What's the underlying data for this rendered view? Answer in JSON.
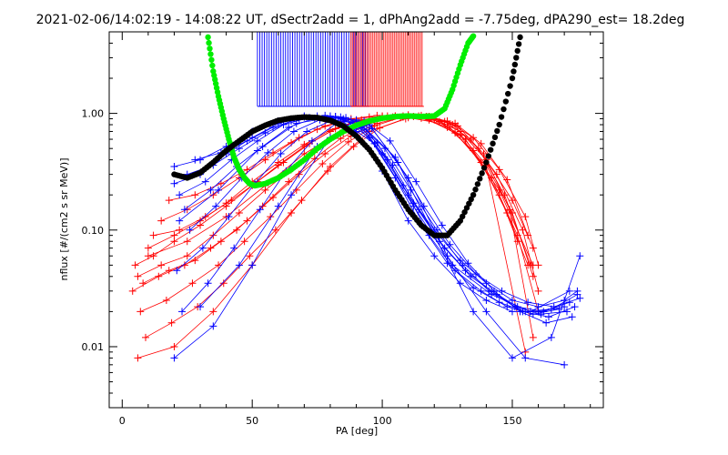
{
  "chart_data": {
    "type": "scatter",
    "title": "2021-02-06/14:02:19 - 14:08:22 UT, dSectr2add = 1, dPhAng2add = -7.75deg, dPA290_est=  18.2deg",
    "xlabel": "PA [deg]",
    "ylabel": "nflux [#/(cm2 s sr MeV)]",
    "xlim": [
      -5,
      185
    ],
    "ylim": [
      0.003,
      5
    ],
    "y_scale": "log",
    "grid": false,
    "x_ticks": [
      {
        "value": 0,
        "label": "0"
      },
      {
        "value": 50,
        "label": "50"
      },
      {
        "value": 100,
        "label": "100"
      },
      {
        "value": 150,
        "label": "150"
      }
    ],
    "y_ticks": [
      {
        "value": 0.01,
        "label": "0.01"
      },
      {
        "value": 0.1,
        "label": "0.10"
      },
      {
        "value": 1,
        "label": "1.00"
      }
    ],
    "colors": {
      "red_series": "#ff0000",
      "blue_series": "#0000ff",
      "green_curve": "#00ee00",
      "black_curve": "#000000",
      "axes": "#000000"
    },
    "curves": {
      "green": {
        "x": [
          33,
          35,
          37,
          39,
          41,
          43,
          45,
          47,
          49,
          51,
          55,
          60,
          65,
          70,
          75,
          80,
          85,
          90,
          95,
          100,
          105,
          110,
          115,
          120,
          124,
          127,
          130,
          133,
          135
        ],
        "y": [
          4.5,
          2.3,
          1.4,
          0.9,
          0.6,
          0.42,
          0.33,
          0.28,
          0.25,
          0.24,
          0.25,
          0.28,
          0.33,
          0.4,
          0.5,
          0.6,
          0.7,
          0.79,
          0.86,
          0.91,
          0.94,
          0.95,
          0.94,
          0.95,
          1.1,
          1.6,
          2.6,
          4.0,
          4.6
        ]
      },
      "black": {
        "x": [
          20,
          25,
          30,
          35,
          40,
          45,
          50,
          55,
          60,
          65,
          70,
          75,
          80,
          85,
          90,
          95,
          100,
          105,
          110,
          115,
          120,
          125,
          130,
          135,
          140,
          145,
          150,
          153
        ],
        "y": [
          0.3,
          0.28,
          0.31,
          0.38,
          0.48,
          0.58,
          0.7,
          0.79,
          0.87,
          0.91,
          0.93,
          0.92,
          0.87,
          0.78,
          0.64,
          0.49,
          0.34,
          0.22,
          0.15,
          0.11,
          0.09,
          0.09,
          0.12,
          0.2,
          0.38,
          0.8,
          2.0,
          4.5
        ]
      }
    },
    "vertical_marks": {
      "blue_range": [
        52,
        95
      ],
      "red_range": [
        88,
        116
      ],
      "y_bottom": 1.15
    },
    "series": [
      {
        "color": "red",
        "lines": [
          {
            "x": [
              5,
              12,
              20,
              30,
              40,
              50,
              60,
              70,
              80,
              90,
              100,
              110,
              120,
              130,
              140,
              150,
              158
            ],
            "y": [
              0.05,
              0.06,
              0.08,
              0.11,
              0.16,
              0.24,
              0.36,
              0.52,
              0.7,
              0.85,
              0.95,
              0.97,
              0.9,
              0.7,
              0.4,
              0.18,
              0.07
            ]
          },
          {
            "x": [
              6,
              15,
              25,
              35,
              45,
              55,
              65,
              75,
              85,
              95,
              105,
              115,
              125,
              135,
              145,
              155,
              160
            ],
            "y": [
              0.04,
              0.05,
              0.06,
              0.09,
              0.14,
              0.22,
              0.33,
              0.49,
              0.68,
              0.85,
              0.95,
              0.96,
              0.86,
              0.62,
              0.33,
              0.13,
              0.05
            ]
          },
          {
            "x": [
              8,
              18,
              28,
              38,
              48,
              58,
              68,
              78,
              88,
              98,
              108,
              118,
              128,
              138,
              148,
              156
            ],
            "y": [
              0.035,
              0.045,
              0.055,
              0.08,
              0.12,
              0.19,
              0.3,
              0.45,
              0.64,
              0.82,
              0.93,
              0.94,
              0.82,
              0.55,
              0.27,
              0.09
            ]
          },
          {
            "x": [
              10,
              20,
              30,
              40,
              50,
              60,
              70,
              80,
              90,
              100,
              110,
              120,
              130,
              140,
              150,
              158
            ],
            "y": [
              0.07,
              0.09,
              0.12,
              0.17,
              0.26,
              0.38,
              0.54,
              0.72,
              0.86,
              0.94,
              0.95,
              0.88,
              0.66,
              0.36,
              0.14,
              0.04
            ]
          },
          {
            "x": [
              4,
              14,
              24,
              34,
              44,
              54,
              64,
              74,
              84,
              94,
              104,
              114,
              124,
              134,
              144,
              154,
              160
            ],
            "y": [
              0.03,
              0.04,
              0.05,
              0.07,
              0.1,
              0.16,
              0.26,
              0.41,
              0.61,
              0.8,
              0.93,
              0.95,
              0.85,
              0.6,
              0.3,
              0.1,
              0.03
            ]
          },
          {
            "x": [
              15,
              25,
              35,
              45,
              55,
              65,
              75,
              85,
              95,
              105,
              115,
              125,
              135,
              145,
              152
            ],
            "y": [
              0.12,
              0.15,
              0.2,
              0.28,
              0.4,
              0.56,
              0.73,
              0.86,
              0.93,
              0.95,
              0.91,
              0.76,
              0.48,
              0.2,
              0.08
            ]
          },
          {
            "x": [
              7,
              17,
              27,
              37,
              47,
              57,
              67,
              77,
              87,
              97,
              107,
              117,
              127,
              137,
              147,
              157
            ],
            "y": [
              0.02,
              0.025,
              0.035,
              0.05,
              0.08,
              0.13,
              0.22,
              0.37,
              0.57,
              0.78,
              0.92,
              0.94,
              0.8,
              0.5,
              0.2,
              0.05
            ]
          },
          {
            "x": [
              12,
              22,
              32,
              42,
              52,
              62,
              72,
              82,
              92,
              102,
              112,
              122,
              132,
              142,
              152,
              160
            ],
            "y": [
              0.09,
              0.1,
              0.13,
              0.18,
              0.26,
              0.38,
              0.55,
              0.74,
              0.88,
              0.95,
              0.94,
              0.85,
              0.6,
              0.28,
              0.09,
              0.02
            ]
          },
          {
            "x": [
              9,
              19,
              29,
              39,
              49,
              59,
              69,
              79,
              89,
              99,
              109,
              119,
              129,
              139,
              149,
              158
            ],
            "y": [
              0.012,
              0.016,
              0.022,
              0.035,
              0.06,
              0.1,
              0.18,
              0.32,
              0.52,
              0.75,
              0.9,
              0.93,
              0.78,
              0.45,
              0.15,
              0.012
            ]
          },
          {
            "x": [
              18,
              28,
              38,
              48,
              58,
              68,
              78,
              88,
              98,
              108,
              118,
              128,
              138,
              148,
              156
            ],
            "y": [
              0.18,
              0.2,
              0.25,
              0.33,
              0.46,
              0.62,
              0.78,
              0.9,
              0.96,
              0.95,
              0.88,
              0.68,
              0.38,
              0.14,
              0.05
            ]
          },
          {
            "x": [
              6,
              20,
              35,
              50,
              65,
              80,
              95,
              110,
              125,
              140,
              155
            ],
            "y": [
              0.008,
              0.01,
              0.02,
              0.05,
              0.14,
              0.35,
              0.7,
              0.92,
              0.8,
              0.35,
              0.009
            ]
          },
          {
            "x": [
              10,
              25,
              40,
              55,
              70,
              85,
              100,
              115,
              130,
              145,
              158
            ],
            "y": [
              0.06,
              0.08,
              0.13,
              0.24,
              0.45,
              0.72,
              0.92,
              0.94,
              0.65,
              0.22,
              0.05
            ]
          }
        ]
      },
      {
        "color": "blue",
        "lines": [
          {
            "x": [
              20,
              30,
              40,
              50,
              60,
              70,
              80,
              90,
              100,
              110,
              120,
              130,
              140,
              150,
              160,
              170,
              175
            ],
            "y": [
              0.25,
              0.3,
              0.45,
              0.62,
              0.82,
              0.93,
              0.95,
              0.8,
              0.45,
              0.2,
              0.1,
              0.055,
              0.035,
              0.025,
              0.022,
              0.025,
              0.03
            ]
          },
          {
            "x": [
              22,
              32,
              42,
              52,
              62,
              72,
              82,
              92,
              102,
              112,
              122,
              132,
              142,
              152,
              162,
              172
            ],
            "y": [
              0.2,
              0.26,
              0.4,
              0.58,
              0.8,
              0.92,
              0.94,
              0.76,
              0.4,
              0.17,
              0.08,
              0.045,
              0.03,
              0.022,
              0.02,
              0.024
            ]
          },
          {
            "x": [
              24,
              34,
              44,
              54,
              64,
              74,
              84,
              94,
              104,
              114,
              124,
              134,
              144,
              154,
              164,
              174
            ],
            "y": [
              0.15,
              0.22,
              0.35,
              0.52,
              0.76,
              0.91,
              0.93,
              0.72,
              0.36,
              0.15,
              0.07,
              0.04,
              0.028,
              0.02,
              0.018,
              0.022
            ]
          },
          {
            "x": [
              20,
              30,
              40,
              50,
              60,
              70,
              80,
              90,
              100,
              110,
              120,
              130,
              140,
              150,
              160,
              170
            ],
            "y": [
              0.35,
              0.4,
              0.52,
              0.7,
              0.86,
              0.95,
              0.93,
              0.7,
              0.32,
              0.12,
              0.06,
              0.035,
              0.025,
              0.02,
              0.02,
              0.022
            ]
          },
          {
            "x": [
              26,
              36,
              46,
              56,
              66,
              76,
              86,
              96,
              106,
              116,
              126,
              136,
              146,
              156,
              166,
              176
            ],
            "y": [
              0.1,
              0.16,
              0.28,
              0.46,
              0.7,
              0.88,
              0.92,
              0.74,
              0.38,
              0.16,
              0.075,
              0.042,
              0.03,
              0.024,
              0.022,
              0.026
            ]
          },
          {
            "x": [
              21,
              31,
              41,
              51,
              61,
              71,
              81,
              91,
              101,
              111,
              121,
              131,
              141,
              151,
              161,
              171
            ],
            "y": [
              0.045,
              0.07,
              0.13,
              0.25,
              0.45,
              0.7,
              0.88,
              0.82,
              0.5,
              0.22,
              0.1,
              0.05,
              0.03,
              0.022,
              0.019,
              0.02
            ]
          },
          {
            "x": [
              23,
              33,
              43,
              53,
              63,
              73,
              83,
              93,
              103,
              113,
              123,
              133,
              143,
              153,
              163,
              173
            ],
            "y": [
              0.02,
              0.035,
              0.07,
              0.15,
              0.32,
              0.58,
              0.84,
              0.86,
              0.58,
              0.26,
              0.11,
              0.052,
              0.03,
              0.02,
              0.016,
              0.018
            ]
          },
          {
            "x": [
              25,
              35,
              45,
              55,
              65,
              75,
              85,
              95,
              105,
              115,
              125,
              135,
              145,
              155,
              165,
              175
            ],
            "y": [
              0.3,
              0.36,
              0.5,
              0.68,
              0.86,
              0.95,
              0.9,
              0.62,
              0.28,
              0.11,
              0.052,
              0.032,
              0.024,
              0.02,
              0.021,
              0.028
            ]
          },
          {
            "x": [
              20,
              35,
              50,
              65,
              80,
              95,
              110,
              125,
              140,
              155,
              170
            ],
            "y": [
              0.008,
              0.015,
              0.05,
              0.2,
              0.62,
              0.8,
              0.28,
              0.06,
              0.02,
              0.008,
              0.007
            ]
          },
          {
            "x": [
              22,
              37,
              52,
              67,
              82,
              97,
              112,
              127,
              142,
              157,
              172
            ],
            "y": [
              0.12,
              0.22,
              0.48,
              0.82,
              0.94,
              0.55,
              0.16,
              0.05,
              0.028,
              0.02,
              0.03
            ]
          },
          {
            "x": [
              28,
              38,
              48,
              58,
              68,
              78,
              88,
              98,
              108,
              118,
              128,
              138,
              148,
              158,
              168
            ],
            "y": [
              0.4,
              0.46,
              0.58,
              0.76,
              0.9,
              0.96,
              0.88,
              0.56,
              0.24,
              0.09,
              0.045,
              0.03,
              0.022,
              0.019,
              0.021
            ]
          },
          {
            "x": [
              30,
              45,
              60,
              75,
              90,
              105,
              120,
              135,
              150,
              165,
              176
            ],
            "y": [
              0.022,
              0.05,
              0.16,
              0.52,
              0.88,
              0.42,
              0.09,
              0.02,
              0.008,
              0.012,
              0.06
            ]
          }
        ]
      }
    ]
  }
}
